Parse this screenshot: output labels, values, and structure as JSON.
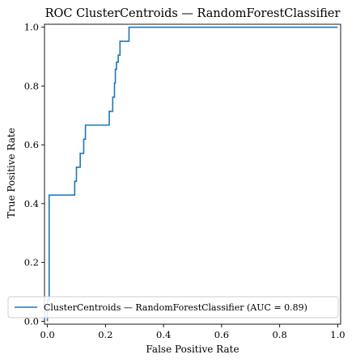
{
  "chart_data": {
    "type": "line",
    "title": "ROC ClusterCentroids — RandomForestClassifier",
    "xlabel": "False Positive Rate",
    "ylabel": "True Positive Rate",
    "xlim": [
      -0.01,
      1.01
    ],
    "ylim": [
      -0.01,
      1.01
    ],
    "xticks": [
      "0.0",
      "0.2",
      "0.4",
      "0.6",
      "0.8",
      "1.0"
    ],
    "yticks": [
      "0.0",
      "0.2",
      "0.4",
      "0.6",
      "0.8",
      "1.0"
    ],
    "grid": false,
    "legend_position": "lower-right",
    "series": [
      {
        "name": "ClusterCentroids — RandomForestClassifier (AUC = 0.89)",
        "color": "#1f77b4",
        "x": [
          0.0,
          0.0,
          0.006,
          0.006,
          0.094,
          0.094,
          0.1,
          0.1,
          0.113,
          0.113,
          0.125,
          0.125,
          0.131,
          0.131,
          0.213,
          0.213,
          0.225,
          0.225,
          0.231,
          0.231,
          0.234,
          0.234,
          0.238,
          0.238,
          0.244,
          0.244,
          0.25,
          0.25,
          0.281,
          0.281,
          1.0
        ],
        "y": [
          0.0,
          0.071,
          0.071,
          0.429,
          0.429,
          0.476,
          0.476,
          0.524,
          0.524,
          0.571,
          0.571,
          0.619,
          0.619,
          0.667,
          0.667,
          0.714,
          0.714,
          0.762,
          0.762,
          0.81,
          0.81,
          0.857,
          0.857,
          0.881,
          0.881,
          0.905,
          0.905,
          0.952,
          0.952,
          1.0,
          1.0
        ]
      }
    ]
  }
}
